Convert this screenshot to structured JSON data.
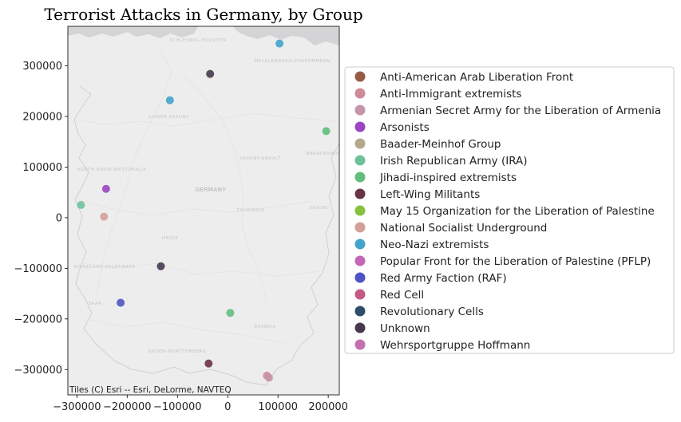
{
  "chart_data": {
    "type": "scatter",
    "title": "Terrorist Attacks in Germany, by Group",
    "xlabel": "",
    "ylabel": "",
    "xlim": [
      -318000,
      222000
    ],
    "ylim": [
      -350000,
      378000
    ],
    "xticks": [
      -300000,
      -200000,
      -100000,
      0,
      100000,
      200000
    ],
    "xtick_labels": [
      "−300000",
      "−200000",
      "−100000",
      "0",
      "100000",
      "200000"
    ],
    "yticks": [
      300000,
      200000,
      100000,
      0,
      -100000,
      -200000,
      -300000
    ],
    "ytick_labels": [
      "300000",
      "200000",
      "100000",
      "0",
      "−100000",
      "−200000",
      "−300000"
    ],
    "grid": false,
    "legend_position": "right",
    "basemap_attribution": "Tiles (C) Esri -- Esri, DeLorme, NAVTEQ",
    "basemap_labels": [
      "GERMANY",
      "LOWER SAXONY",
      "NORTH RHINE-WESTPHALIA",
      "HESSE",
      "THURINGIA",
      "SAXONY-ANHALT",
      "RHINELAND-PALATINATE",
      "BAVARIA",
      "BADEN-WURTTEMBERG",
      "MECKLENBURG-VORPOMMERN",
      "BRANDENBURG",
      "SCHLESWIG-HOLSTEIN",
      "SAXONY",
      "SAAR"
    ],
    "series": [
      {
        "name": "Anti-American Arab Liberation Front",
        "color": "#965a47",
        "points": []
      },
      {
        "name": "Anti-Immigrant extremists",
        "color": "#cf8a98",
        "points": [
          [
            78000,
            -312000
          ]
        ]
      },
      {
        "name": "Armenian Secret Army for the Liberation of Armenia",
        "color": "#c495a8",
        "points": [
          [
            82000,
            -316000
          ]
        ]
      },
      {
        "name": "Arsonists",
        "color": "#9b45c2",
        "points": [
          [
            -242000,
            57000
          ]
        ]
      },
      {
        "name": "Baader-Meinhof Group",
        "color": "#b5a78b",
        "points": []
      },
      {
        "name": "Irish Republican Army (IRA)",
        "color": "#6ec29a",
        "points": [
          [
            -292000,
            25000
          ]
        ]
      },
      {
        "name": "Jihadi-inspired extremists",
        "color": "#63bd7c",
        "points": [
          [
            196000,
            171000
          ],
          [
            5000,
            -188000
          ]
        ]
      },
      {
        "name": "Left-Wing Militants",
        "color": "#6b3347",
        "points": [
          [
            -38000,
            -288000
          ]
        ]
      },
      {
        "name": "May 15 Organization for the Liberation of Palestine",
        "color": "#86c23e",
        "points": []
      },
      {
        "name": "National Socialist Underground",
        "color": "#d49e99",
        "points": [
          [
            -246000,
            2000
          ]
        ]
      },
      {
        "name": "Neo-Nazi extremists",
        "color": "#43a3c9",
        "points": [
          [
            103000,
            344000
          ],
          [
            -115000,
            232000
          ]
        ]
      },
      {
        "name": "Popular Front for the Liberation of Palestine (PFLP)",
        "color": "#c266b5",
        "points": []
      },
      {
        "name": "Red Army Faction (RAF)",
        "color": "#4f52c2",
        "points": [
          [
            -213000,
            -168000
          ]
        ]
      },
      {
        "name": "Red Cell",
        "color": "#c45985",
        "points": []
      },
      {
        "name": "Revolutionary Cells",
        "color": "#2f4d69",
        "points": []
      },
      {
        "name": "Unknown",
        "color": "#47384f",
        "points": [
          [
            -35000,
            284000
          ],
          [
            -133000,
            -96000
          ]
        ]
      },
      {
        "name": "Wehrsportgruppe Hoffmann",
        "color": "#c270b0",
        "points": []
      }
    ]
  }
}
